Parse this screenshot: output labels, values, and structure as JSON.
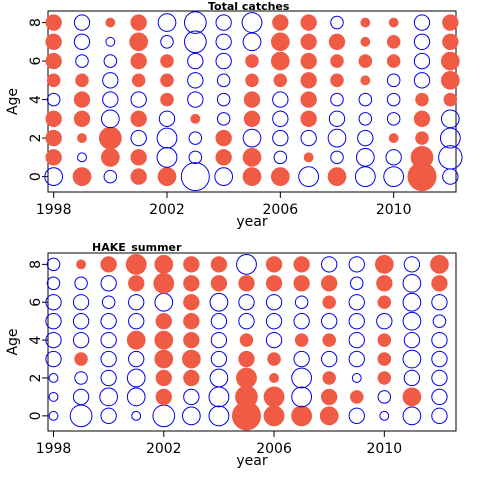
{
  "chart_data": [
    {
      "type": "scatter",
      "subtype": "bubble",
      "title": "Total catches",
      "xlabel": "year",
      "ylabel": "Age",
      "xlim": [
        1997.8,
        2012.2
      ],
      "ylim": [
        -0.8,
        8.6
      ],
      "xticks": [
        1998,
        2002,
        2006,
        2010
      ],
      "yticks": [
        0,
        2,
        4,
        6,
        8
      ],
      "grid": false,
      "colors": {
        "positive": "#ef5b45",
        "negative": "#0000ee"
      },
      "years": [
        1998,
        1999,
        2000,
        2001,
        2002,
        2003,
        2004,
        2005,
        2006,
        2007,
        2008,
        2009,
        2010,
        2011,
        2012
      ],
      "ages": [
        0,
        1,
        2,
        3,
        4,
        5,
        6,
        7,
        8
      ],
      "residuals_by_age": [
        [
          -4,
          4,
          -2,
          3,
          4,
          -10,
          -4,
          4,
          4,
          -5,
          4,
          -5,
          -5,
          10,
          -3
        ],
        [
          3,
          -1,
          4,
          3,
          -5,
          -2,
          3,
          4,
          -2,
          1,
          -2,
          -4,
          -3,
          6,
          -7
        ],
        [
          3,
          1,
          6,
          -3,
          -5,
          -2,
          3,
          -4,
          -3,
          -3,
          -4,
          -3,
          1,
          2,
          -5
        ],
        [
          3,
          3,
          -4,
          3,
          -3,
          1,
          -2,
          3,
          -3,
          3,
          -3,
          -2,
          -2,
          3,
          -4
        ],
        [
          -2,
          3,
          -3,
          -3,
          2,
          -3,
          -2,
          3,
          -3,
          3,
          -2,
          -2,
          -2,
          2,
          2
        ],
        [
          2,
          2,
          -3,
          2,
          2,
          -3,
          -2,
          2,
          2,
          3,
          2,
          1,
          -2,
          -3,
          4
        ],
        [
          3,
          -2,
          -2,
          3,
          2,
          -3,
          -3,
          2,
          4,
          3,
          2,
          2,
          2,
          -3,
          4
        ],
        [
          3,
          -3,
          -1,
          4,
          -2,
          -6,
          -3,
          -4,
          4,
          3,
          3,
          1,
          2,
          -3,
          3
        ],
        [
          3,
          -3,
          1,
          3,
          -4,
          -6,
          -3,
          -5,
          3,
          3,
          -2,
          1,
          1,
          -3,
          3
        ]
      ]
    },
    {
      "type": "scatter",
      "subtype": "bubble",
      "title": "HAKE_summer",
      "xlabel": "year",
      "ylabel": "Age",
      "xlim": [
        1997.8,
        2012.6
      ],
      "ylim": [
        -0.8,
        8.6
      ],
      "xticks": [
        1998,
        2002,
        2006,
        2010
      ],
      "yticks": [
        0,
        2,
        4,
        6,
        8
      ],
      "grid": false,
      "colors": {
        "positive": "#ef5b45",
        "negative": "#0000ee"
      },
      "years": [
        1998,
        1999,
        2000,
        2001,
        2002,
        2003,
        2004,
        2005,
        2006,
        2007,
        2008,
        2009,
        2010,
        2011,
        2012
      ],
      "ages": [
        0,
        1,
        2,
        3,
        4,
        5,
        6,
        7,
        8
      ],
      "residuals_by_age": [
        [
          -1,
          -6,
          -3,
          -1,
          -6,
          -4,
          -5,
          10,
          5,
          5,
          4,
          -3,
          -1,
          -4,
          -3
        ],
        [
          -1,
          -3,
          -4,
          -4,
          3,
          -3,
          -5,
          6,
          5,
          -5,
          3,
          2,
          -2,
          4,
          -3
        ],
        [
          -1,
          -2,
          -3,
          -4,
          3,
          3,
          -4,
          5,
          1,
          -5,
          2,
          -1,
          2,
          -3,
          -3
        ],
        [
          -3,
          2,
          -3,
          -3,
          4,
          4,
          -3,
          3,
          2,
          -3,
          -3,
          -3,
          2,
          -4,
          -3
        ],
        [
          -3,
          -3,
          -3,
          4,
          4,
          3,
          -3,
          2,
          -3,
          2,
          2,
          -3,
          2,
          -3,
          -3
        ],
        [
          -3,
          -3,
          -3,
          -3,
          3,
          3,
          -3,
          -3,
          -3,
          -3,
          -3,
          -3,
          -3,
          -4,
          -2
        ],
        [
          -3,
          -3,
          -2,
          -3,
          -4,
          3,
          -4,
          -3,
          -3,
          -2,
          2,
          -3,
          2,
          -4,
          -3
        ],
        [
          -2,
          -2,
          -3,
          3,
          5,
          3,
          3,
          3,
          3,
          3,
          3,
          -2,
          3,
          -4,
          3
        ],
        [
          -2,
          1,
          3,
          5,
          4,
          3,
          3,
          -5,
          3,
          3,
          -3,
          -3,
          4,
          -3,
          4
        ]
      ]
    }
  ]
}
